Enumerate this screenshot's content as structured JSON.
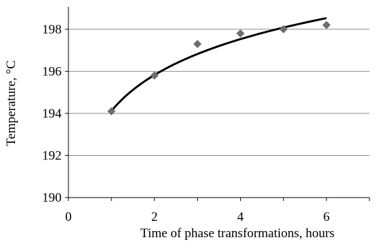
{
  "chart_data": {
    "type": "scatter",
    "title": "",
    "xlabel": "Time of phase transformations, hours",
    "ylabel": "Temperature, °C",
    "xlim": [
      0,
      7
    ],
    "ylim": [
      190,
      199
    ],
    "x_ticks": [
      0,
      2,
      4,
      6
    ],
    "y_ticks": [
      190,
      192,
      194,
      196,
      198
    ],
    "grid": "horizontal",
    "series": [
      {
        "type": "scatter",
        "marker": "diamond",
        "color": "#6d6d6d",
        "points": [
          {
            "x": 1,
            "y": 194.1
          },
          {
            "x": 2,
            "y": 195.8
          },
          {
            "x": 3,
            "y": 197.3
          },
          {
            "x": 4,
            "y": 197.8
          },
          {
            "x": 5,
            "y": 198.0
          },
          {
            "x": 6,
            "y": 198.2
          }
        ]
      },
      {
        "type": "trendline",
        "kind": "logarithmic",
        "color": "#000000",
        "x_range": [
          1,
          6
        ],
        "a": 194.12,
        "b": 2.46
      }
    ]
  }
}
